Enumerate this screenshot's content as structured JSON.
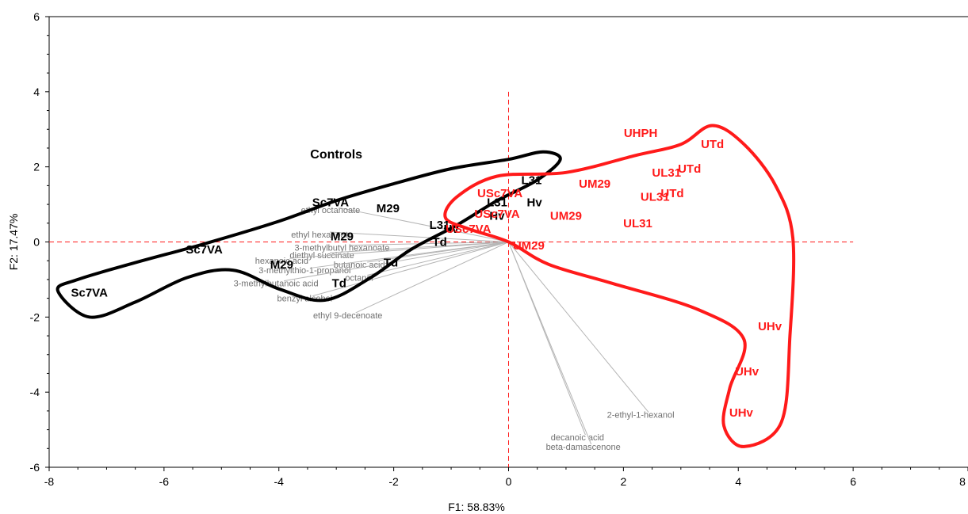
{
  "chart_data": {
    "type": "scatter",
    "subtype": "PCA biplot",
    "xlabel": "F1: 58.83%",
    "ylabel": "F2: 17.47%",
    "xlim": [
      -8,
      8
    ],
    "ylim": [
      -6,
      6
    ],
    "x_ticks": [
      -8,
      -6,
      -4,
      -2,
      0,
      2,
      4,
      6,
      8
    ],
    "y_ticks": [
      -6,
      -4,
      -2,
      0,
      2,
      4,
      6
    ],
    "grid": false,
    "reference_lines": {
      "x": 0,
      "y": 0,
      "color": "#ff1a1a",
      "style": "dashed"
    },
    "group_labels": [
      {
        "text": "Controls",
        "x": -3,
        "y": 2.35
      }
    ],
    "series": [
      {
        "color": "#000000",
        "points": [
          {
            "label": "Sc7VA",
            "x": -7.3,
            "y": -1.35
          },
          {
            "label": "Sc7VA",
            "x": -5.3,
            "y": -0.2
          },
          {
            "label": "Sc7VA",
            "x": -3.1,
            "y": 1.05
          },
          {
            "label": "M29",
            "x": -2.1,
            "y": 0.9
          },
          {
            "label": "M29",
            "x": -2.9,
            "y": 0.15
          },
          {
            "label": "M29",
            "x": -3.95,
            "y": -0.6
          },
          {
            "label": "Td",
            "x": -2.05,
            "y": -0.55
          },
          {
            "label": "Td",
            "x": -2.95,
            "y": -1.1
          },
          {
            "label": "Td",
            "x": -1.2,
            "y": 0.0
          },
          {
            "label": "L31",
            "x": -1.2,
            "y": 0.45
          },
          {
            "label": "L31",
            "x": 0.4,
            "y": 1.65
          },
          {
            "label": "L31",
            "x": -0.2,
            "y": 1.05
          },
          {
            "label": "Hv",
            "x": -0.2,
            "y": 0.7
          },
          {
            "label": "Hv",
            "x": 0.45,
            "y": 1.05
          },
          {
            "label": "Hv",
            "x": -1.0,
            "y": 0.35
          }
        ]
      },
      {
        "color": "#ff1a1a",
        "points": [
          {
            "label": "UHPH",
            "x": 2.3,
            "y": 2.9
          },
          {
            "label": "UTd",
            "x": 3.55,
            "y": 2.6
          },
          {
            "label": "UTd",
            "x": 3.15,
            "y": 1.95
          },
          {
            "label": "UTd",
            "x": 2.85,
            "y": 1.3
          },
          {
            "label": "UL31",
            "x": 2.75,
            "y": 1.85
          },
          {
            "label": "UL31",
            "x": 2.55,
            "y": 1.2
          },
          {
            "label": "UL31",
            "x": 2.25,
            "y": 0.5
          },
          {
            "label": "UM29",
            "x": 1.5,
            "y": 1.55
          },
          {
            "label": "UM29",
            "x": 1.0,
            "y": 0.7
          },
          {
            "label": "UM29",
            "x": 0.35,
            "y": -0.1
          },
          {
            "label": "USc7VA",
            "x": -0.15,
            "y": 1.3
          },
          {
            "label": "USc7VA",
            "x": -0.2,
            "y": 0.75
          },
          {
            "label": "USc7VA",
            "x": -0.7,
            "y": 0.35
          },
          {
            "label": "UHv",
            "x": 4.55,
            "y": -2.25
          },
          {
            "label": "UHv",
            "x": 4.15,
            "y": -3.45
          },
          {
            "label": "UHv",
            "x": 4.05,
            "y": -4.55
          }
        ]
      }
    ],
    "variables": [
      {
        "label": "ethyl octanoate",
        "x": -3.1,
        "y": 0.85
      },
      {
        "label": "ethyl hexanoate",
        "x": -3.25,
        "y": 0.2
      },
      {
        "label": "3-methylbutyl hexanoate",
        "x": -2.9,
        "y": -0.15
      },
      {
        "label": "diethyl succinate",
        "x": -3.25,
        "y": -0.35
      },
      {
        "label": "hexanoic acid",
        "x": -3.95,
        "y": -0.5
      },
      {
        "label": "butanoic acid",
        "x": -2.6,
        "y": -0.6
      },
      {
        "label": "3-methylthio-1-propanol",
        "x": -3.55,
        "y": -0.75
      },
      {
        "label": "octanol",
        "x": -2.6,
        "y": -0.95
      },
      {
        "label": "3-methylbutanoic acid",
        "x": -4.05,
        "y": -1.1
      },
      {
        "label": "benzyl alcohol",
        "x": -3.55,
        "y": -1.5
      },
      {
        "label": "ethyl 9-decenoate",
        "x": -2.8,
        "y": -1.95
      },
      {
        "label": "2-ethyl-1-hexanol",
        "x": 2.3,
        "y": -4.6
      },
      {
        "label": "decanoic acid",
        "x": 1.2,
        "y": -5.2
      },
      {
        "label": "beta-damascenone",
        "x": 1.3,
        "y": -5.45
      }
    ]
  }
}
